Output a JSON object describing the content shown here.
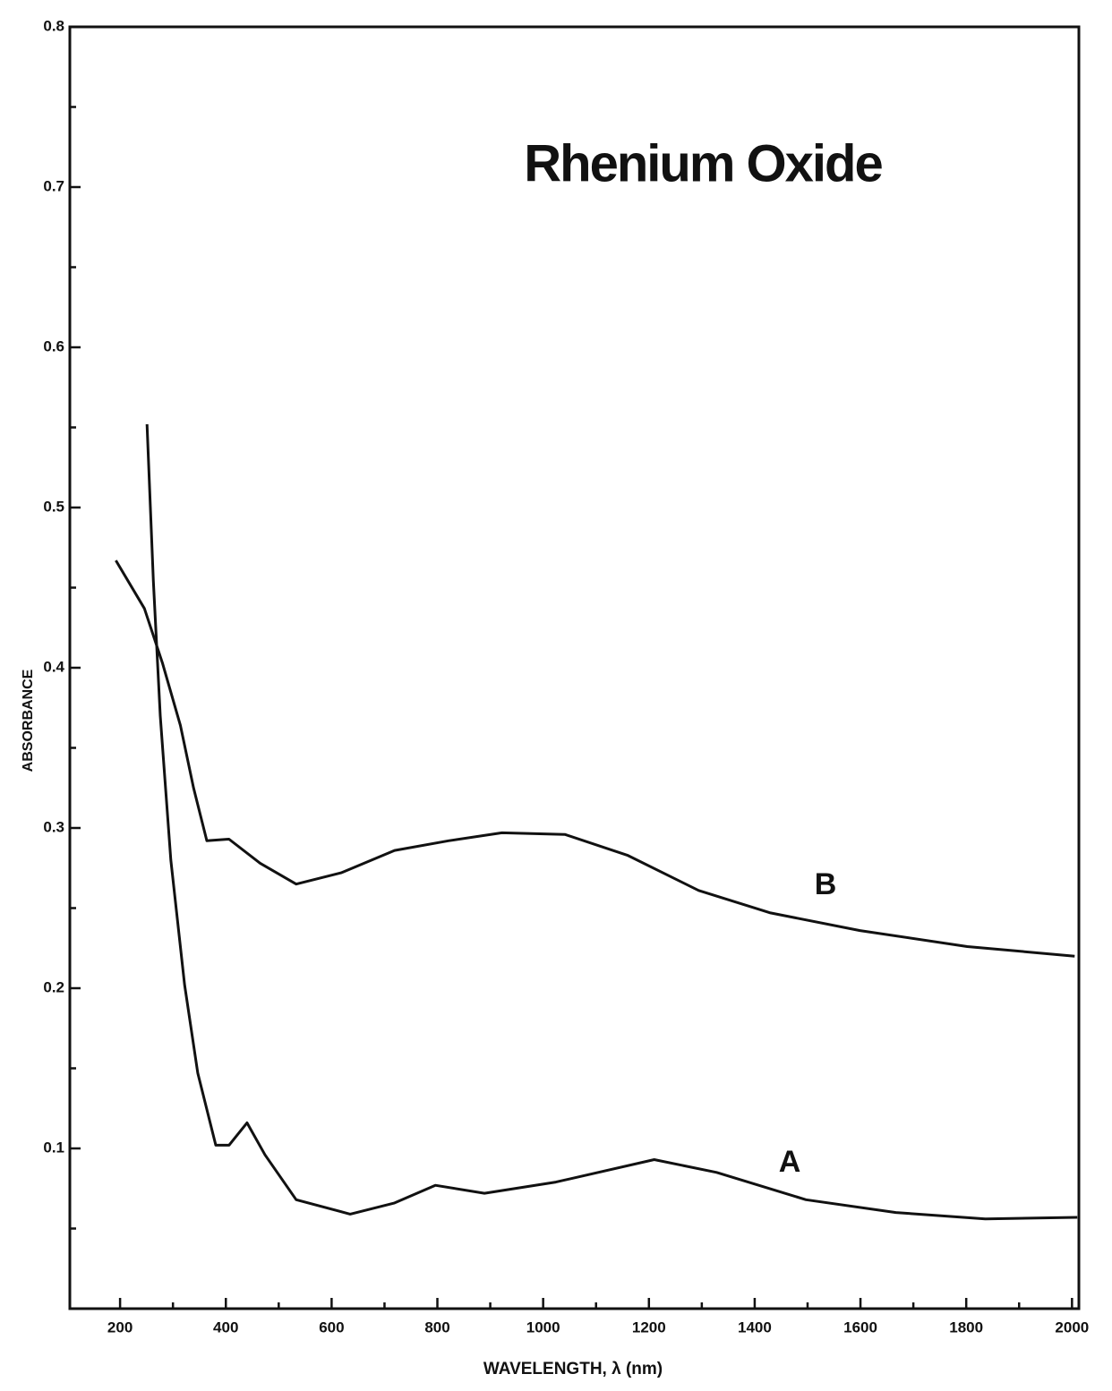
{
  "chart_data": {
    "type": "line",
    "title": "Rhenium Oxide",
    "x_label": "WAVELENGTH, λ (nm)",
    "y_label": "ABSORBANCE",
    "xlim": [
      105,
      2013
    ],
    "xticks": [
      200,
      400,
      600,
      800,
      1000,
      1200,
      1400,
      1600,
      1800,
      2000
    ],
    "ylim": [
      0,
      0.8
    ],
    "yticks": [
      0.1,
      0.2,
      0.3,
      0.4,
      0.5,
      0.6,
      0.7,
      0.8
    ],
    "series": [
      {
        "name": "A",
        "color": "#111111",
        "x": [
          251,
          263,
          276,
          296,
          322,
          347,
          381,
          406,
          440,
          474,
          533,
          635,
          719,
          796,
          889,
          1024,
          1210,
          1328,
          1497,
          1667,
          1836,
          2010
        ],
        "values": [
          0.552,
          0.454,
          0.37,
          0.28,
          0.202,
          0.147,
          0.102,
          0.102,
          0.116,
          0.096,
          0.068,
          0.059,
          0.066,
          0.077,
          0.072,
          0.079,
          0.093,
          0.085,
          0.068,
          0.06,
          0.056,
          0.057
        ]
      },
      {
        "name": "B",
        "color": "#111111",
        "x": [
          192,
          246,
          280,
          314,
          339,
          364,
          406,
          465,
          533,
          618,
          719,
          821,
          922,
          1041,
          1159,
          1294,
          1430,
          1599,
          1802,
          2005
        ],
        "values": [
          0.467,
          0.437,
          0.403,
          0.364,
          0.325,
          0.292,
          0.293,
          0.278,
          0.265,
          0.272,
          0.286,
          0.292,
          0.297,
          0.296,
          0.283,
          0.261,
          0.247,
          0.236,
          0.226,
          0.22
        ]
      }
    ]
  }
}
